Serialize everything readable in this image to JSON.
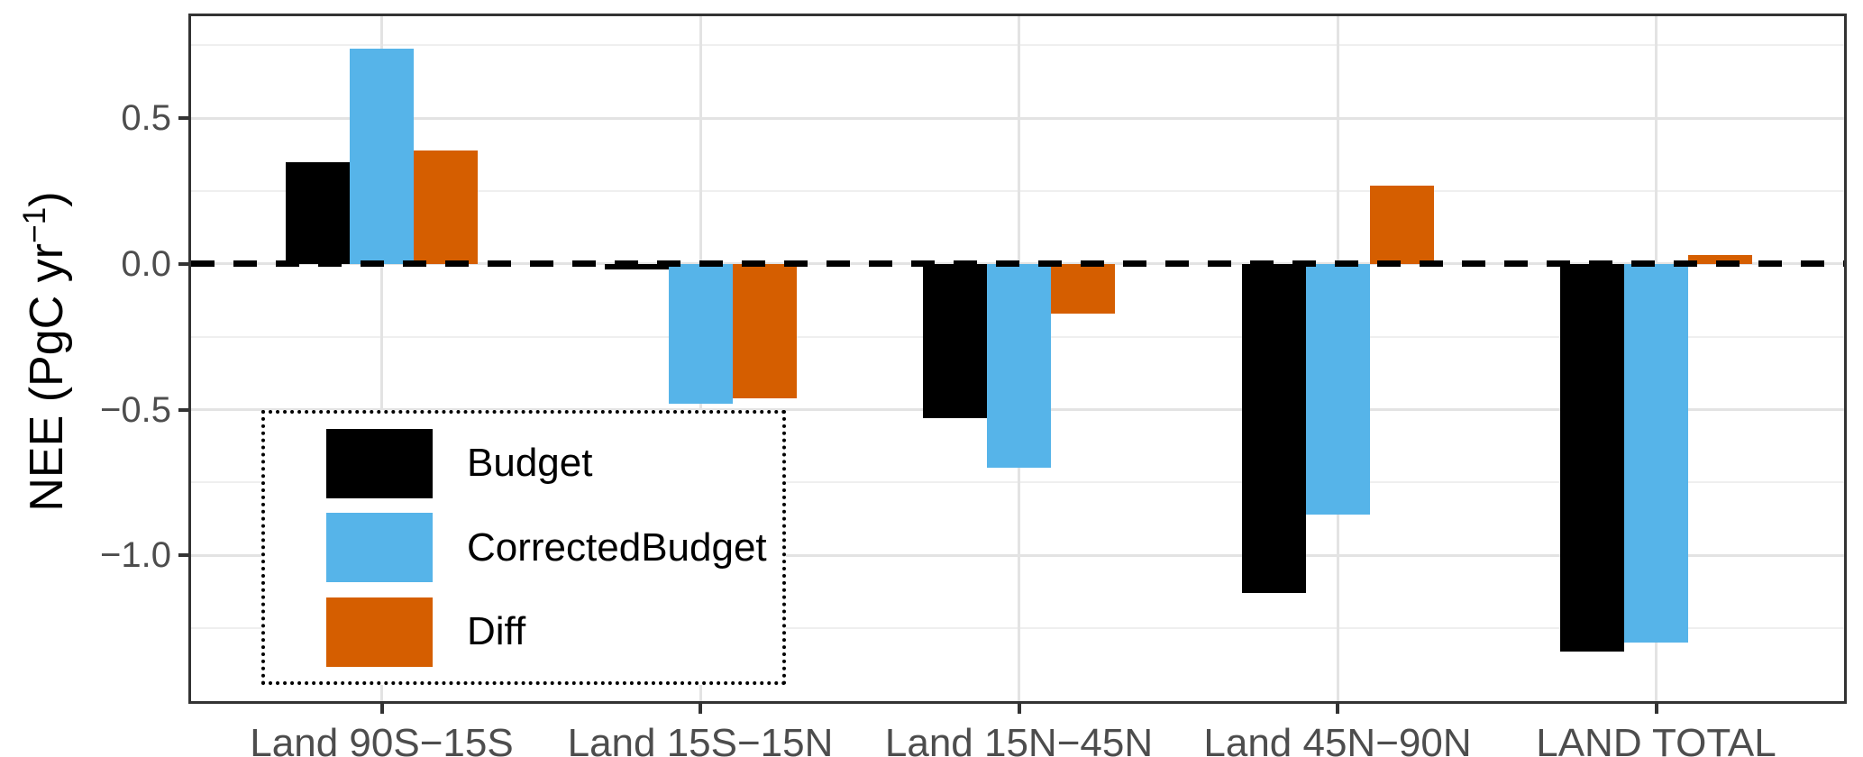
{
  "chart_data": {
    "type": "bar",
    "title": "",
    "xlabel": "",
    "ylabel_prefix": "NEE (PgC yr",
    "ylabel_sup": "−1",
    "ylabel_suffix": ")",
    "categories": [
      "Land 90S−15S",
      "Land 15S−15N",
      "Land 15N−45N",
      "Land 45N−90N",
      "LAND TOTAL"
    ],
    "series": [
      {
        "name": "Budget",
        "color": "#000000",
        "values": [
          0.35,
          -0.02,
          -0.53,
          -1.13,
          -1.33
        ]
      },
      {
        "name": "CorrectedBudget",
        "color": "#56B4E9",
        "values": [
          0.74,
          -0.48,
          -0.7,
          -0.86,
          -1.3
        ]
      },
      {
        "name": "Diff",
        "color": "#D55E00",
        "values": [
          0.39,
          -0.46,
          -0.17,
          0.27,
          0.03
        ]
      }
    ],
    "ylim": [
      -1.5,
      0.85
    ],
    "y_ticks": [
      {
        "value": 0.5,
        "label": "0.5"
      },
      {
        "value": 0.0,
        "label": "0.0"
      },
      {
        "value": -0.5,
        "label": "−0.5"
      },
      {
        "value": -1.0,
        "label": "−1.0"
      }
    ],
    "y_minor_gridlines": [
      0.75,
      0.25,
      -0.25,
      -0.75,
      -1.25
    ],
    "zero_line": {
      "value": 0,
      "style": "dashed",
      "color": "#000000"
    },
    "legend": {
      "position": "bottom-left",
      "border": "dotted",
      "entries": [
        "Budget",
        "CorrectedBudget",
        "Diff"
      ]
    },
    "grid": "on",
    "style_colors": {
      "major_grid": "#E3E3E3",
      "minor_grid": "#EFEFEF",
      "axis_text": "#4D4D4D",
      "panel_border": "#333333"
    }
  }
}
